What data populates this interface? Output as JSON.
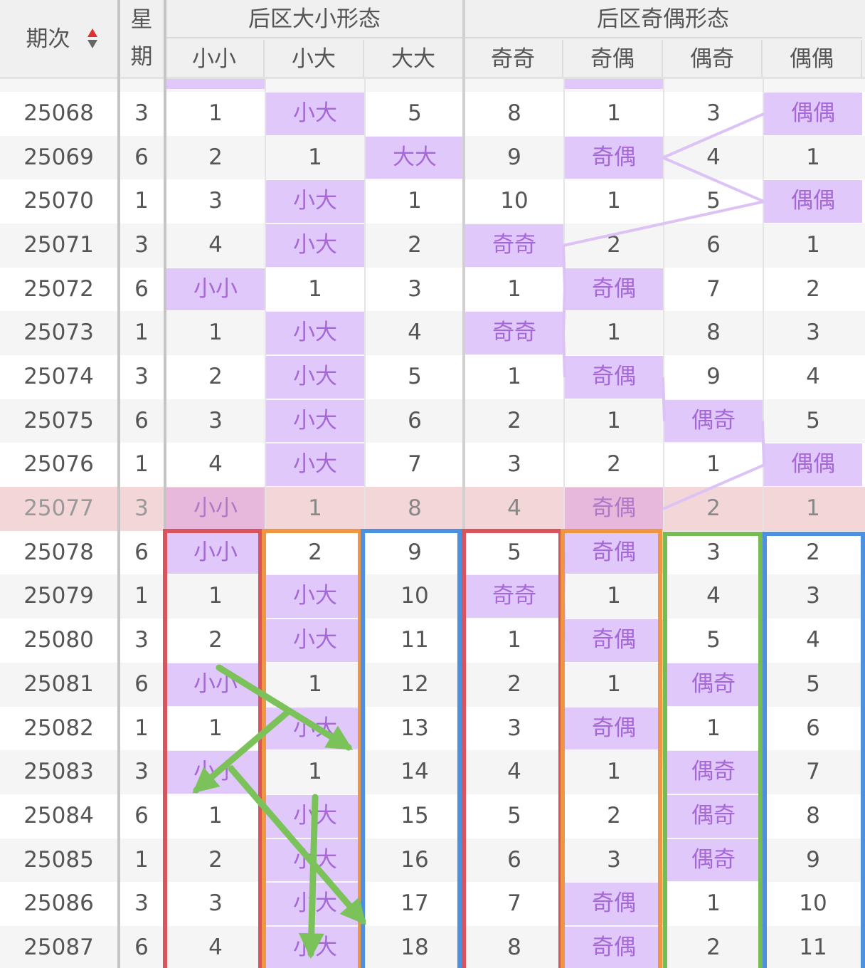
{
  "header": {
    "period": "期次",
    "weekday": "星期",
    "groups": [
      {
        "title": "后区大小形态",
        "columns": [
          "小小",
          "小大",
          "大大"
        ]
      },
      {
        "title": "后区奇偶形态",
        "columns": [
          "奇奇",
          "奇偶",
          "偶奇",
          "偶偶"
        ]
      }
    ]
  },
  "table": {
    "rows": [
      {
        "period": 25068,
        "weekday": 3,
        "cells": [
          1,
          "小大",
          5,
          8,
          1,
          3,
          "偶偶"
        ]
      },
      {
        "period": 25069,
        "weekday": 6,
        "cells": [
          2,
          1,
          "大大",
          9,
          "奇偶",
          4,
          1
        ]
      },
      {
        "period": 25070,
        "weekday": 1,
        "cells": [
          3,
          "小大",
          1,
          10,
          1,
          5,
          "偶偶"
        ]
      },
      {
        "period": 25071,
        "weekday": 3,
        "cells": [
          4,
          "小大",
          2,
          "奇奇",
          2,
          6,
          1
        ]
      },
      {
        "period": 25072,
        "weekday": 6,
        "cells": [
          "小小",
          1,
          3,
          1,
          "奇偶",
          7,
          2
        ]
      },
      {
        "period": 25073,
        "weekday": 1,
        "cells": [
          1,
          "小大",
          4,
          "奇奇",
          1,
          8,
          3
        ]
      },
      {
        "period": 25074,
        "weekday": 3,
        "cells": [
          2,
          "小大",
          5,
          1,
          "奇偶",
          9,
          4
        ]
      },
      {
        "period": 25075,
        "weekday": 6,
        "cells": [
          3,
          "小大",
          6,
          2,
          1,
          "偶奇",
          5
        ]
      },
      {
        "period": 25076,
        "weekday": 1,
        "cells": [
          4,
          "小大",
          7,
          3,
          2,
          1,
          "偶偶"
        ]
      },
      {
        "period": 25077,
        "weekday": 3,
        "cells": [
          "小小",
          1,
          8,
          4,
          "奇偶",
          2,
          1
        ],
        "highlighted": true
      },
      {
        "period": 25078,
        "weekday": 6,
        "cells": [
          "小小",
          2,
          9,
          5,
          "奇偶",
          3,
          2
        ]
      },
      {
        "period": 25079,
        "weekday": 1,
        "cells": [
          1,
          "小大",
          10,
          "奇奇",
          1,
          4,
          3
        ]
      },
      {
        "period": 25080,
        "weekday": 3,
        "cells": [
          2,
          "小大",
          11,
          1,
          "奇偶",
          5,
          4
        ]
      },
      {
        "period": 25081,
        "weekday": 6,
        "cells": [
          "小小",
          1,
          12,
          2,
          1,
          "偶奇",
          5
        ]
      },
      {
        "period": 25082,
        "weekday": 1,
        "cells": [
          1,
          "小大",
          13,
          3,
          "奇偶",
          1,
          6
        ]
      },
      {
        "period": 25083,
        "weekday": 3,
        "cells": [
          "小小",
          1,
          14,
          4,
          1,
          "偶奇",
          7
        ]
      },
      {
        "period": 25084,
        "weekday": 6,
        "cells": [
          1,
          "小大",
          15,
          5,
          2,
          "偶奇",
          8
        ]
      },
      {
        "period": 25085,
        "weekday": 1,
        "cells": [
          2,
          "小大",
          16,
          6,
          3,
          "偶奇",
          9
        ]
      },
      {
        "period": 25086,
        "weekday": 3,
        "cells": [
          3,
          "小大",
          17,
          7,
          "奇偶",
          1,
          10
        ]
      },
      {
        "period": 25087,
        "weekday": 6,
        "cells": [
          4,
          "小大",
          18,
          8,
          "奇偶",
          2,
          11
        ]
      }
    ]
  }
}
